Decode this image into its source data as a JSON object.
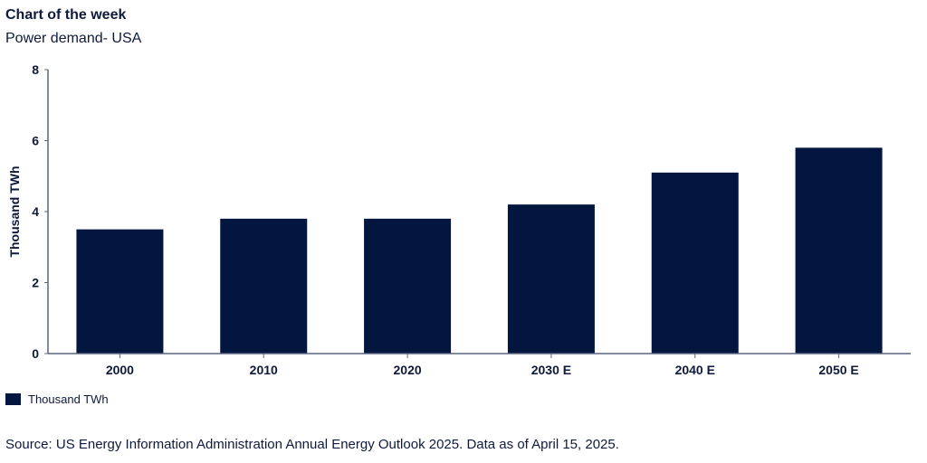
{
  "header": {
    "title": "Chart of the week",
    "subtitle": "Power demand- USA"
  },
  "chart_data": {
    "type": "bar",
    "title": "Power demand- USA",
    "categories": [
      "2000",
      "2010",
      "2020",
      "2030 E",
      "2040 E",
      "2050 E"
    ],
    "values": [
      3.5,
      3.8,
      3.8,
      4.2,
      5.1,
      5.8
    ],
    "xlabel": "",
    "ylabel": "Thousand TWh",
    "ylim": [
      0,
      8
    ],
    "yticks": [
      "0",
      "2",
      "4",
      "6",
      "8"
    ],
    "grid": false,
    "legend": {
      "entries": [
        "Thousand TWh"
      ],
      "placement": "bottom-left"
    },
    "colors": {
      "bar": "#021640",
      "axis": "#5a6580"
    }
  },
  "footer": {
    "source": "Source: US Energy Information Administration Annual Energy Outlook 2025. Data as of April 15, 2025."
  }
}
